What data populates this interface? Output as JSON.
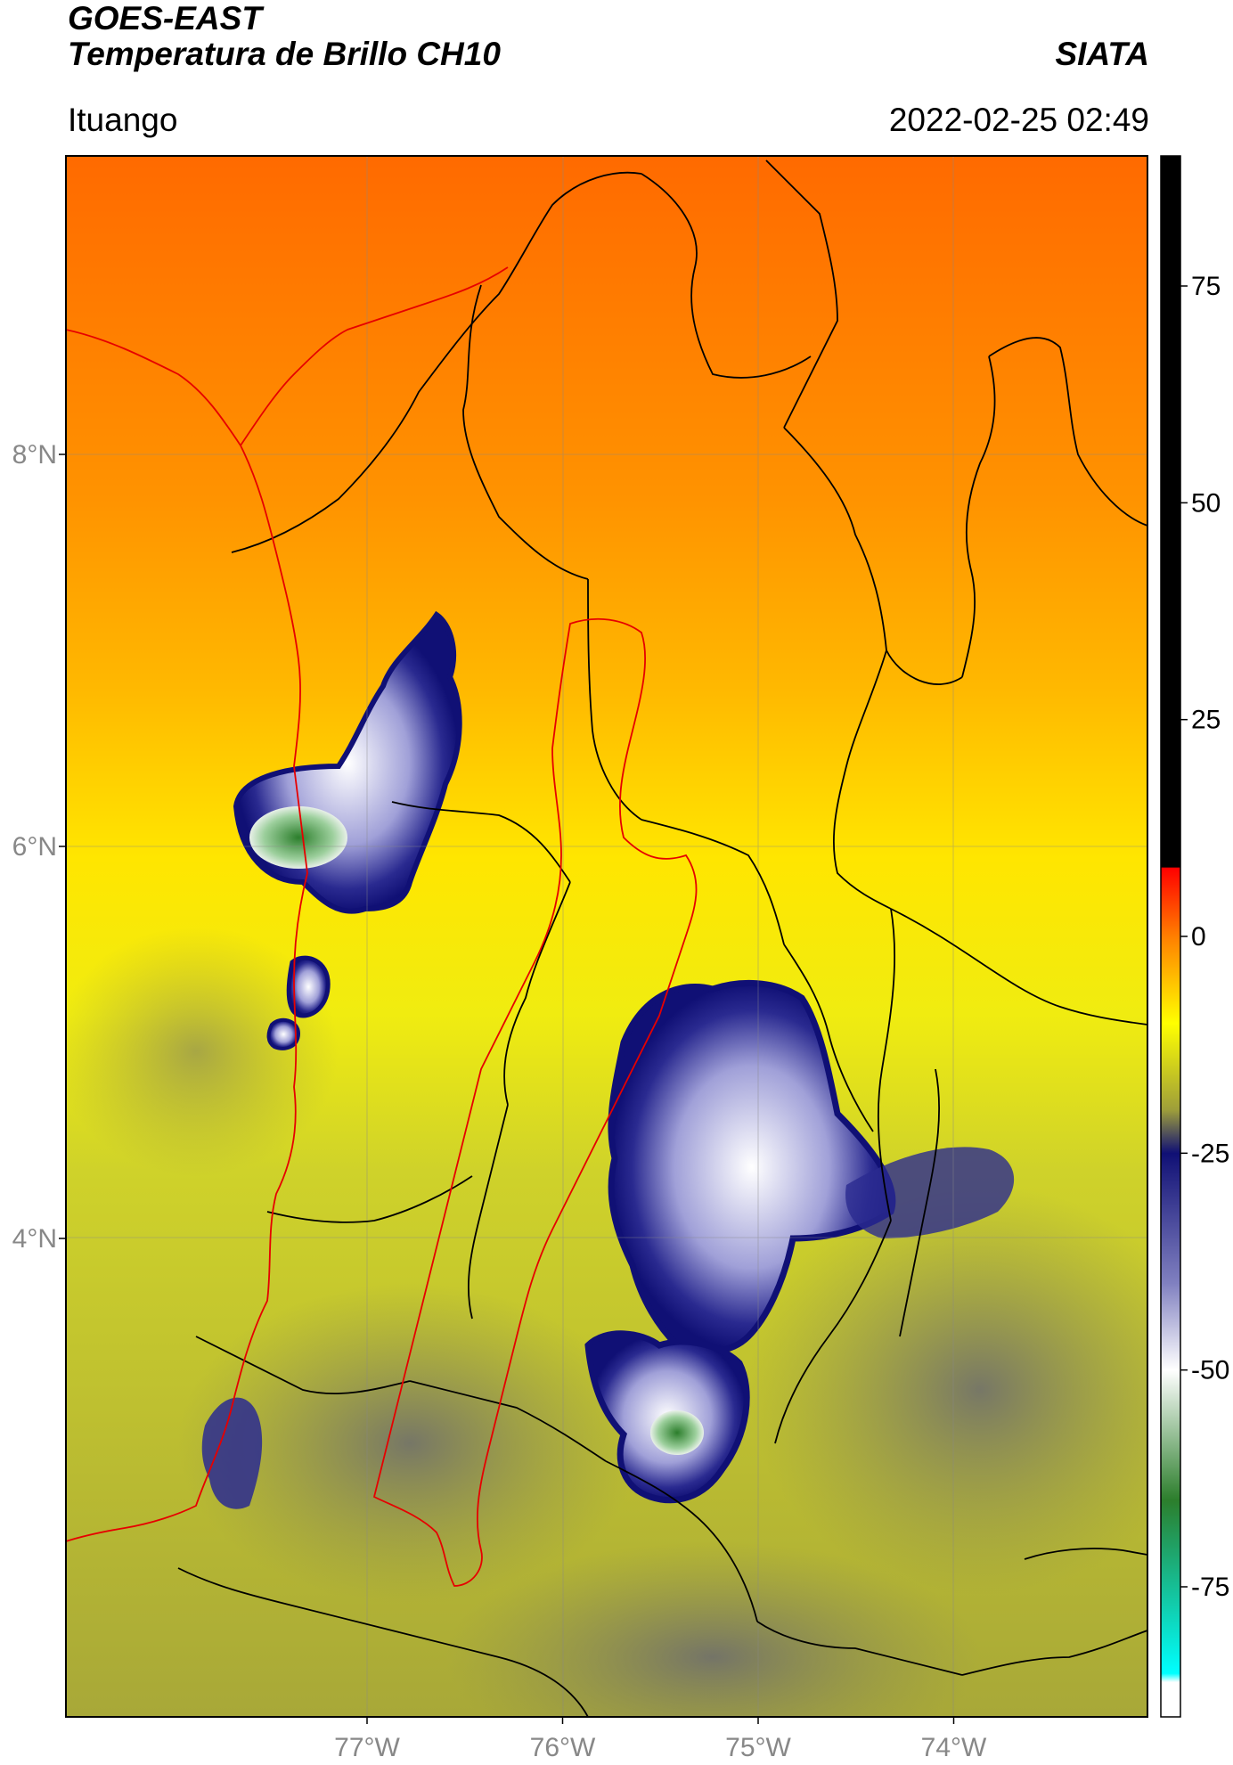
{
  "header": {
    "title_line1": "GOES-EAST",
    "title_line2": "Temperatura de Brillo CH10",
    "organization": "SIATA",
    "region": "Ituango",
    "timestamp": "2022-02-25 02:49"
  },
  "map": {
    "lat_ticks": [
      {
        "label": "8°N",
        "value": 8
      },
      {
        "label": "6°N",
        "value": 6
      },
      {
        "label": "4°N",
        "value": 4
      }
    ],
    "lon_ticks": [
      {
        "label": "77°W",
        "value": -77
      },
      {
        "label": "76°W",
        "value": -76
      },
      {
        "label": "75°W",
        "value": -75
      },
      {
        "label": "74°W",
        "value": -74
      }
    ],
    "gridlines": true,
    "border_colors": {
      "country_coast": "#e60000",
      "departments": "#000000"
    }
  },
  "colorbar": {
    "ticks": [
      "75",
      "50",
      "25",
      "0",
      "-25",
      "-50",
      "-75"
    ],
    "tick_values": [
      75,
      50,
      25,
      0,
      -25,
      -50,
      -75
    ],
    "range": [
      -90,
      90
    ],
    "stops": [
      {
        "v": 90,
        "c": "#000000"
      },
      {
        "v": 8,
        "c": "#000000"
      },
      {
        "v": 7.9,
        "c": "#ff0000"
      },
      {
        "v": 0,
        "c": "#ff7f00"
      },
      {
        "v": -10,
        "c": "#ffff00"
      },
      {
        "v": -20,
        "c": "#9e9e3a"
      },
      {
        "v": -25,
        "c": "#101075"
      },
      {
        "v": -40,
        "c": "#8080c0"
      },
      {
        "v": -50,
        "c": "#ffffff"
      },
      {
        "v": -65,
        "c": "#2c7e2c"
      },
      {
        "v": -85,
        "c": "#00ffff"
      },
      {
        "v": -86,
        "c": "#ffffff"
      },
      {
        "v": -90,
        "c": "#ffffff"
      }
    ]
  }
}
